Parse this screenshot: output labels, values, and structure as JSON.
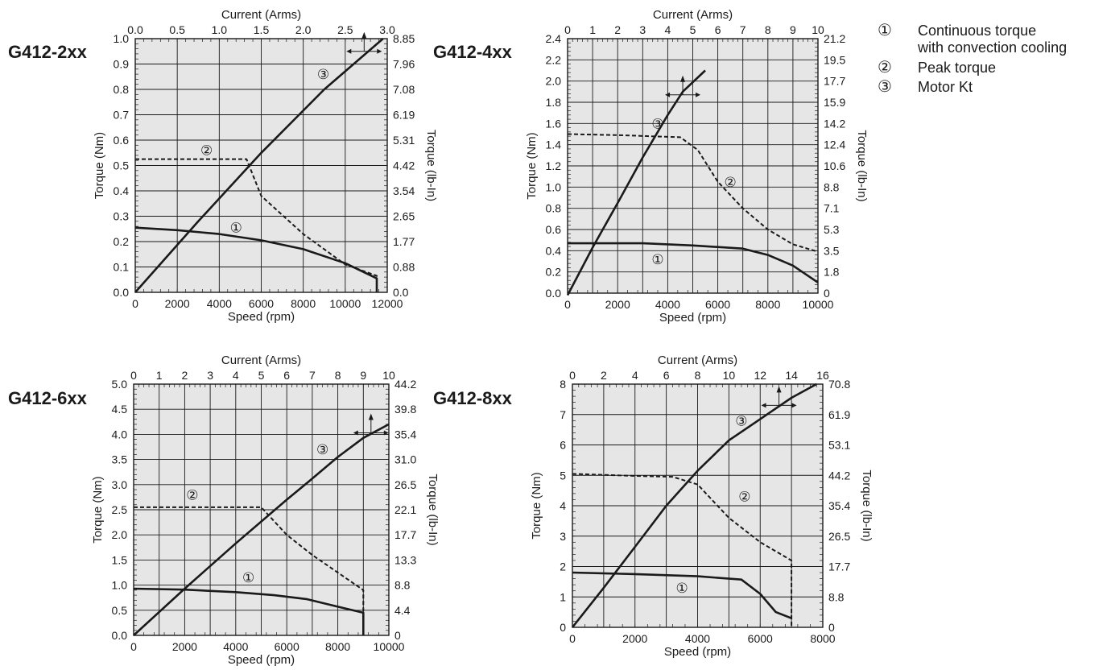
{
  "legend": {
    "items": [
      {
        "num": "①",
        "label": "Continuous torque",
        "sub": "with convection cooling"
      },
      {
        "num": "②",
        "label": "Peak torque",
        "sub": ""
      },
      {
        "num": "③",
        "label": "Motor Kt",
        "sub": ""
      }
    ]
  },
  "chart_data": [
    {
      "type": "line",
      "model": "G412-2xx",
      "xlabel": "Speed (rpm)",
      "x2label": "Current (Arms)",
      "ylabel": "Torque (Nm)",
      "y2label": "Torque (lb-In)",
      "xlim": [
        0,
        12000
      ],
      "ylim": [
        0,
        1.0
      ],
      "x2lim": [
        0,
        3.0
      ],
      "xticks": [
        "0",
        "2000",
        "4000",
        "6000",
        "8000",
        "10000",
        "12000"
      ],
      "x2ticks": [
        "0.0",
        "0.5",
        "1.0",
        "1.5",
        "2.0",
        "2.5",
        "3.0"
      ],
      "yticks": [
        "0.0",
        "0.1",
        "0.2",
        "0.3",
        "0.4",
        "0.5",
        "0.6",
        "0.7",
        "0.8",
        "0.9",
        "1.0"
      ],
      "y2ticks": [
        "0.0",
        "0.88",
        "1.77",
        "2.65",
        "3.54",
        "4.42",
        "5.31",
        "6.19",
        "7.08",
        "7.96",
        "8.85"
      ],
      "grid": true,
      "series": [
        {
          "marker": "①",
          "style": "solid",
          "axis": "speed",
          "x": [
            0,
            2000,
            4000,
            6000,
            8000,
            10000,
            11500,
            11500
          ],
          "y": [
            0.255,
            0.245,
            0.23,
            0.205,
            0.17,
            0.115,
            0.055,
            0.0
          ]
        },
        {
          "marker": "②",
          "style": "dashed",
          "axis": "speed",
          "x": [
            0,
            5300,
            6000,
            8000,
            10000,
            11500,
            11500
          ],
          "y": [
            0.525,
            0.525,
            0.38,
            0.23,
            0.11,
            0.065,
            0.0
          ]
        },
        {
          "marker": "③",
          "style": "solid",
          "axis": "current",
          "x": [
            0,
            0.75,
            1.5,
            2.25,
            2.95
          ],
          "y": [
            0.0,
            0.28,
            0.55,
            0.8,
            1.0
          ]
        }
      ],
      "annotations": [
        {
          "text": "①",
          "x": 4800,
          "y": 0.255
        },
        {
          "text": "②",
          "x": 3400,
          "y": 0.56
        },
        {
          "text": "③",
          "x": 8950,
          "y": 0.86
        }
      ],
      "arrow": {
        "x": 10900,
        "y": 0.95
      }
    },
    {
      "type": "line",
      "model": "G412-4xx",
      "xlabel": "Speed (rpm)",
      "x2label": "Current (Arms)",
      "ylabel": "Torque (Nm)",
      "y2label": "Torque (lb-In)",
      "xlim": [
        0,
        10000
      ],
      "ylim": [
        0,
        2.4
      ],
      "x2lim": [
        0,
        10
      ],
      "xticks": [
        "0",
        "2000",
        "4000",
        "6000",
        "8000",
        "10000"
      ],
      "x2ticks": [
        "0",
        "1",
        "2",
        "3",
        "4",
        "5",
        "6",
        "7",
        "8",
        "9",
        "10"
      ],
      "yticks": [
        "0.0",
        "0.2",
        "0.4",
        "0.6",
        "0.8",
        "1.0",
        "1.2",
        "1.4",
        "1.6",
        "1.8",
        "2.0",
        "2.2",
        "2.4"
      ],
      "y2ticks": [
        "0",
        "1.8",
        "3.5",
        "5.3",
        "7.1",
        "8.8",
        "10.6",
        "12.4",
        "14.2",
        "15.9",
        "17.7",
        "19.5",
        "21.2"
      ],
      "grid": true,
      "series": [
        {
          "marker": "①",
          "style": "solid",
          "axis": "speed",
          "x": [
            0,
            3000,
            5000,
            7000,
            8000,
            9000,
            10000
          ],
          "y": [
            0.47,
            0.47,
            0.45,
            0.42,
            0.36,
            0.26,
            0.1
          ]
        },
        {
          "marker": "②",
          "style": "dashed",
          "axis": "speed",
          "x": [
            0,
            2000,
            4500,
            5200,
            6000,
            7000,
            8000,
            9000,
            10000
          ],
          "y": [
            1.5,
            1.49,
            1.47,
            1.35,
            1.05,
            0.8,
            0.6,
            0.46,
            0.39
          ]
        },
        {
          "marker": "③",
          "style": "solid",
          "axis": "current",
          "x": [
            0,
            1,
            2,
            3,
            4,
            4.6,
            5.5
          ],
          "y": [
            -0.02,
            0.43,
            0.85,
            1.28,
            1.68,
            1.9,
            2.1
          ]
        }
      ],
      "annotations": [
        {
          "text": "①",
          "x": 3600,
          "y": 0.32
        },
        {
          "text": "②",
          "x": 6500,
          "y": 1.05
        },
        {
          "text": "③",
          "x": 3600,
          "y": 1.6
        }
      ],
      "arrow": {
        "x": 4600,
        "y": 1.87
      }
    },
    {
      "type": "line",
      "model": "G412-6xx",
      "xlabel": "Speed (rpm)",
      "x2label": "Current (Arms)",
      "ylabel": "Torque (Nm)",
      "y2label": "Torque (lb-In)",
      "xlim": [
        0,
        10000
      ],
      "ylim": [
        0,
        5.0
      ],
      "x2lim": [
        0,
        10
      ],
      "xticks": [
        "0",
        "2000",
        "4000",
        "6000",
        "8000",
        "10000"
      ],
      "x2ticks": [
        "0",
        "1",
        "2",
        "3",
        "4",
        "5",
        "6",
        "7",
        "8",
        "9",
        "10"
      ],
      "yticks": [
        "0.0",
        "0.5",
        "1.0",
        "1.5",
        "2.0",
        "2.5",
        "3.0",
        "3.5",
        "4.0",
        "4.5",
        "5.0"
      ],
      "y2ticks": [
        "0",
        "4.4",
        "8.8",
        "13.3",
        "17.7",
        "22.1",
        "26.5",
        "31.0",
        "35.4",
        "39.8",
        "44.2"
      ],
      "grid": true,
      "series": [
        {
          "marker": "①",
          "style": "solid",
          "axis": "speed",
          "x": [
            0,
            2000,
            4000,
            5500,
            6800,
            8000,
            9000,
            9000
          ],
          "y": [
            0.93,
            0.91,
            0.86,
            0.8,
            0.72,
            0.57,
            0.45,
            0.0
          ]
        },
        {
          "marker": "②",
          "style": "dashed",
          "axis": "speed",
          "x": [
            0,
            5000,
            6000,
            7000,
            8000,
            9000,
            9000
          ],
          "y": [
            2.55,
            2.55,
            2.0,
            1.6,
            1.25,
            0.9,
            0.0
          ]
        },
        {
          "marker": "③",
          "style": "solid",
          "axis": "current",
          "x": [
            0,
            2,
            4,
            6,
            7,
            8,
            9,
            10
          ],
          "y": [
            0.0,
            0.93,
            1.83,
            2.7,
            3.12,
            3.55,
            3.93,
            4.2
          ]
        }
      ],
      "annotations": [
        {
          "text": "①",
          "x": 4500,
          "y": 1.15
        },
        {
          "text": "②",
          "x": 2300,
          "y": 2.8
        },
        {
          "text": "③",
          "x": 7400,
          "y": 3.7
        }
      ],
      "arrow": {
        "x": 9300,
        "y": 4.03
      }
    },
    {
      "type": "line",
      "model": "G412-8xx",
      "xlabel": "Speed (rpm)",
      "x2label": "Current (Arms)",
      "ylabel": "Torque (Nm)",
      "y2label": "Torque (lb-In)",
      "xlim": [
        0,
        8000
      ],
      "ylim": [
        0,
        8
      ],
      "x2lim": [
        0,
        16
      ],
      "xticks": [
        "0",
        "2000",
        "4000",
        "6000",
        "8000"
      ],
      "x2ticks": [
        "0",
        "2",
        "4",
        "6",
        "8",
        "10",
        "12",
        "14",
        "16"
      ],
      "yticks": [
        "0",
        "1",
        "2",
        "3",
        "4",
        "5",
        "6",
        "7",
        "8"
      ],
      "y2ticks": [
        "0",
        "8.8",
        "17.7",
        "26.5",
        "35.4",
        "44.2",
        "53.1",
        "61.9",
        "70.8"
      ],
      "grid": true,
      "series": [
        {
          "marker": "①",
          "style": "solid",
          "axis": "speed",
          "x": [
            0,
            2000,
            4000,
            5400,
            6000,
            6500,
            7000
          ],
          "y": [
            1.8,
            1.75,
            1.68,
            1.57,
            1.1,
            0.5,
            0.3
          ]
        },
        {
          "marker": "②",
          "style": "dashed",
          "axis": "speed",
          "x": [
            0,
            2000,
            3200,
            4000,
            5000,
            6000,
            7000,
            7000
          ],
          "y": [
            5.05,
            4.98,
            4.95,
            4.7,
            3.6,
            2.8,
            2.2,
            0.0
          ]
        },
        {
          "marker": "③",
          "style": "solid",
          "axis": "current",
          "x": [
            0,
            2,
            4,
            6,
            8,
            10,
            12,
            14,
            15.6
          ],
          "y": [
            0.0,
            1.3,
            2.65,
            4.0,
            5.15,
            6.15,
            6.85,
            7.55,
            8.0
          ]
        }
      ],
      "annotations": [
        {
          "text": "①",
          "x": 3500,
          "y": 1.3
        },
        {
          "text": "②",
          "x": 5500,
          "y": 4.3
        },
        {
          "text": "③",
          "x": 5400,
          "y": 6.8
        }
      ],
      "arrow": {
        "x": 6600,
        "y": 7.3
      }
    }
  ]
}
